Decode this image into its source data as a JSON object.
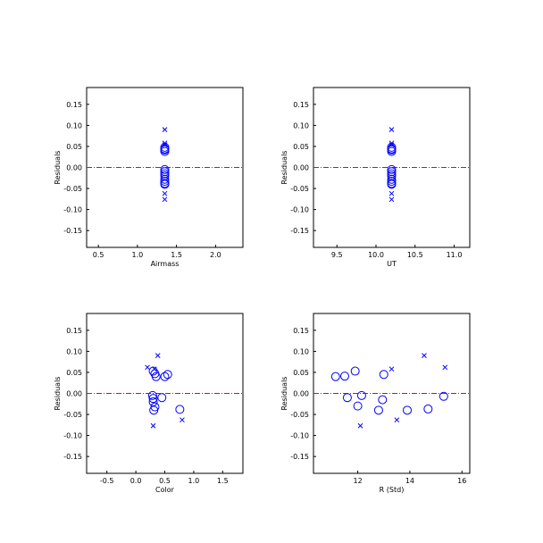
{
  "colors": {
    "marker": "#0000ff",
    "zero_line": "#ff0000",
    "axes": "#000000"
  },
  "chart_data": [
    {
      "type": "scatter",
      "xlabel": "Airmass",
      "ylabel": "Residuals",
      "xlim": [
        0.35,
        2.35
      ],
      "ylim": [
        -0.19,
        0.19
      ],
      "xticks": [
        "0.5",
        "1.0",
        "1.5",
        "2.0"
      ],
      "yticks": [
        "-0.15",
        "-0.10",
        "-0.05",
        "0.00",
        "0.05",
        "0.10",
        "0.15"
      ],
      "zero_line": 0.0,
      "series": [
        {
          "marker": "circle",
          "points": [
            [
              1.35,
              0.048
            ],
            [
              1.35,
              0.044
            ],
            [
              1.35,
              0.042
            ],
            [
              1.35,
              0.038
            ],
            [
              1.35,
              -0.005
            ],
            [
              1.35,
              -0.01
            ],
            [
              1.35,
              -0.015
            ],
            [
              1.35,
              -0.02
            ],
            [
              1.35,
              -0.028
            ],
            [
              1.35,
              -0.033
            ],
            [
              1.35,
              -0.038
            ],
            [
              1.35,
              -0.04
            ]
          ]
        },
        {
          "marker": "x",
          "points": [
            [
              1.35,
              0.09
            ],
            [
              1.35,
              0.058
            ],
            [
              1.35,
              0.054
            ],
            [
              1.35,
              -0.062
            ],
            [
              1.35,
              -0.076
            ]
          ]
        }
      ]
    },
    {
      "type": "scatter",
      "xlabel": "UT",
      "ylabel": "Residuals",
      "xlim": [
        9.2,
        11.2
      ],
      "ylim": [
        -0.19,
        0.19
      ],
      "xticks": [
        "9.5",
        "10.0",
        "10.5",
        "11.0"
      ],
      "yticks": [
        "-0.15",
        "-0.10",
        "-0.05",
        "0.00",
        "0.05",
        "0.10",
        "0.15"
      ],
      "zero_line": 0.0,
      "series": [
        {
          "marker": "circle",
          "points": [
            [
              10.2,
              0.048
            ],
            [
              10.2,
              0.044
            ],
            [
              10.2,
              0.042
            ],
            [
              10.2,
              0.038
            ],
            [
              10.2,
              -0.005
            ],
            [
              10.2,
              -0.01
            ],
            [
              10.2,
              -0.015
            ],
            [
              10.2,
              -0.02
            ],
            [
              10.2,
              -0.028
            ],
            [
              10.2,
              -0.033
            ],
            [
              10.2,
              -0.038
            ],
            [
              10.2,
              -0.04
            ]
          ]
        },
        {
          "marker": "x",
          "points": [
            [
              10.2,
              0.09
            ],
            [
              10.2,
              0.058
            ],
            [
              10.2,
              0.054
            ],
            [
              10.2,
              -0.062
            ],
            [
              10.2,
              -0.076
            ]
          ]
        }
      ]
    },
    {
      "type": "scatter",
      "xlabel": "Color",
      "ylabel": "Residuals",
      "xlim": [
        -0.85,
        1.85
      ],
      "ylim": [
        -0.19,
        0.19
      ],
      "xticks": [
        "-0.5",
        "0.0",
        "0.5",
        "1.0",
        "1.5"
      ],
      "yticks": [
        "-0.15",
        "-0.10",
        "-0.05",
        "0.00",
        "0.05",
        "0.10",
        "0.15"
      ],
      "zero_line": 0.0,
      "series": [
        {
          "marker": "circle",
          "points": [
            [
              0.3,
              0.053
            ],
            [
              0.33,
              0.047
            ],
            [
              0.35,
              0.04
            ],
            [
              0.55,
              0.045
            ],
            [
              0.5,
              0.04
            ],
            [
              0.29,
              -0.005
            ],
            [
              0.3,
              -0.012
            ],
            [
              0.45,
              -0.01
            ],
            [
              0.33,
              -0.032
            ],
            [
              0.31,
              -0.04
            ],
            [
              0.76,
              -0.038
            ],
            [
              0.3,
              -0.02
            ]
          ]
        },
        {
          "marker": "x",
          "points": [
            [
              0.38,
              0.09
            ],
            [
              0.2,
              0.062
            ],
            [
              0.32,
              0.058
            ],
            [
              0.3,
              -0.077
            ],
            [
              0.8,
              -0.063
            ]
          ]
        }
      ]
    },
    {
      "type": "scatter",
      "xlabel": "R (Std)",
      "ylabel": "Residuals",
      "xlim": [
        10.3,
        16.3
      ],
      "ylim": [
        -0.19,
        0.19
      ],
      "xticks": [
        "12",
        "14",
        "16"
      ],
      "yticks": [
        "-0.15",
        "-0.10",
        "-0.05",
        "0.00",
        "0.05",
        "0.10",
        "0.15"
      ],
      "zero_line": 0.0,
      "series": [
        {
          "marker": "circle",
          "points": [
            [
              11.15,
              0.04
            ],
            [
              11.5,
              0.041
            ],
            [
              11.9,
              0.053
            ],
            [
              13.0,
              0.045
            ],
            [
              11.6,
              -0.01
            ],
            [
              12.15,
              -0.005
            ],
            [
              12.95,
              -0.015
            ],
            [
              12.0,
              -0.03
            ],
            [
              12.8,
              -0.04
            ],
            [
              13.9,
              -0.04
            ],
            [
              14.7,
              -0.037
            ],
            [
              15.3,
              -0.007
            ]
          ]
        },
        {
          "marker": "x",
          "points": [
            [
              14.55,
              0.09
            ],
            [
              13.3,
              0.058
            ],
            [
              15.35,
              0.062
            ],
            [
              12.1,
              -0.077
            ],
            [
              13.5,
              -0.063
            ]
          ]
        }
      ]
    }
  ]
}
